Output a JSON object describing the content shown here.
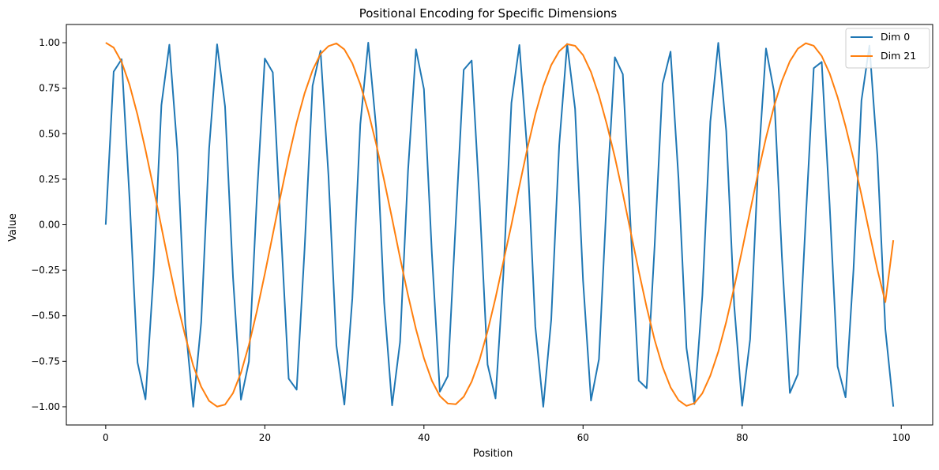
{
  "chart_data": {
    "type": "line",
    "title": "Positional Encoding for Specific Dimensions",
    "xlabel": "Position",
    "ylabel": "Value",
    "xlim": [
      -4.95,
      103.95
    ],
    "ylim": [
      -1.1,
      1.1
    ],
    "xticks": [
      0,
      20,
      40,
      60,
      80,
      100
    ],
    "xtick_labels": [
      "0",
      "20",
      "40",
      "60",
      "80",
      "100"
    ],
    "yticks": [
      -1.0,
      -0.75,
      -0.5,
      -0.25,
      0.0,
      0.25,
      0.5,
      0.75,
      1.0
    ],
    "ytick_labels": [
      "−1.00",
      "−0.75",
      "−0.50",
      "−0.25",
      "0.00",
      "0.25",
      "0.50",
      "0.75",
      "1.00"
    ],
    "grid": false,
    "legend_position": "top-right",
    "x": [
      0,
      1,
      2,
      3,
      4,
      5,
      6,
      7,
      8,
      9,
      10,
      11,
      12,
      13,
      14,
      15,
      16,
      17,
      18,
      19,
      20,
      21,
      22,
      23,
      24,
      25,
      26,
      27,
      28,
      29,
      30,
      31,
      32,
      33,
      34,
      35,
      36,
      37,
      38,
      39,
      40,
      41,
      42,
      43,
      44,
      45,
      46,
      47,
      48,
      49,
      50,
      51,
      52,
      53,
      54,
      55,
      56,
      57,
      58,
      59,
      60,
      61,
      62,
      63,
      64,
      65,
      66,
      67,
      68,
      69,
      70,
      71,
      72,
      73,
      74,
      75,
      76,
      77,
      78,
      79,
      80,
      81,
      82,
      83,
      84,
      85,
      86,
      87,
      88,
      89,
      90,
      91,
      92,
      93,
      94,
      95,
      96,
      97,
      98,
      99
    ],
    "series": [
      {
        "name": "Dim 0",
        "color": "#1f77b4",
        "values": [
          0.0,
          0.841,
          0.909,
          0.141,
          -0.757,
          -0.959,
          -0.279,
          0.657,
          0.989,
          0.412,
          -0.544,
          -1.0,
          -0.537,
          0.42,
          0.991,
          0.65,
          -0.288,
          -0.961,
          -0.751,
          0.15,
          0.913,
          0.837,
          -0.009,
          -0.846,
          -0.906,
          -0.132,
          0.763,
          0.956,
          0.271,
          -0.664,
          -0.988,
          -0.404,
          0.551,
          1.0,
          0.529,
          -0.428,
          -0.992,
          -0.644,
          0.296,
          0.964,
          0.745,
          -0.159,
          -0.917,
          -0.832,
          0.018,
          0.851,
          0.902,
          0.124,
          -0.768,
          -0.954,
          -0.262,
          0.67,
          0.987,
          0.396,
          -0.559,
          -1.0,
          -0.522,
          0.436,
          0.993,
          0.637,
          -0.305,
          -0.966,
          -0.739,
          0.167,
          0.92,
          0.827,
          -0.027,
          -0.856,
          -0.898,
          -0.115,
          0.774,
          0.951,
          0.254,
          -0.677,
          -0.985,
          -0.388,
          0.566,
          0.999,
          0.514,
          -0.444,
          -0.994,
          -0.63,
          0.313,
          0.968,
          0.733,
          -0.176,
          -0.924,
          -0.822,
          0.035,
          0.86,
          0.894,
          0.107,
          -0.779,
          -0.948,
          -0.245,
          0.683,
          0.984,
          0.38,
          -0.573,
          -0.999
        ]
      },
      {
        "name": "Dim 21",
        "color": "#ff7f0e",
        "values": [
          1.0,
          0.973,
          0.894,
          0.768,
          0.603,
          0.411,
          0.203,
          -0.013,
          -0.229,
          -0.432,
          -0.612,
          -0.774,
          -0.89,
          -0.968,
          -0.999,
          -0.988,
          -0.925,
          -0.813,
          -0.66,
          -0.475,
          -0.27,
          -0.054,
          0.163,
          0.372,
          0.561,
          0.722,
          0.848,
          0.938,
          0.981,
          0.996,
          0.963,
          0.887,
          0.772,
          0.621,
          0.443,
          0.244,
          0.033,
          -0.182,
          -0.387,
          -0.574,
          -0.733,
          -0.857,
          -0.941,
          -0.982,
          -0.986,
          -0.945,
          -0.862,
          -0.741,
          -0.585,
          -0.402,
          -0.2,
          0.0,
          0.213,
          0.419,
          0.606,
          0.76,
          0.877,
          0.953,
          0.992,
          0.983,
          0.932,
          0.839,
          0.709,
          0.55,
          0.371,
          0.171,
          -0.042,
          -0.254,
          -0.454,
          -0.633,
          -0.781,
          -0.893,
          -0.964,
          -0.995,
          -0.981,
          -0.926,
          -0.829,
          -0.698,
          -0.534,
          -0.344,
          -0.138,
          0.074,
          0.284,
          0.478,
          0.649,
          0.791,
          0.898,
          0.967,
          0.997,
          0.983,
          0.927,
          0.831,
          0.7,
          0.541,
          0.361,
          0.163,
          -0.044,
          -0.246,
          -0.425,
          -0.085
        ]
      }
    ]
  }
}
